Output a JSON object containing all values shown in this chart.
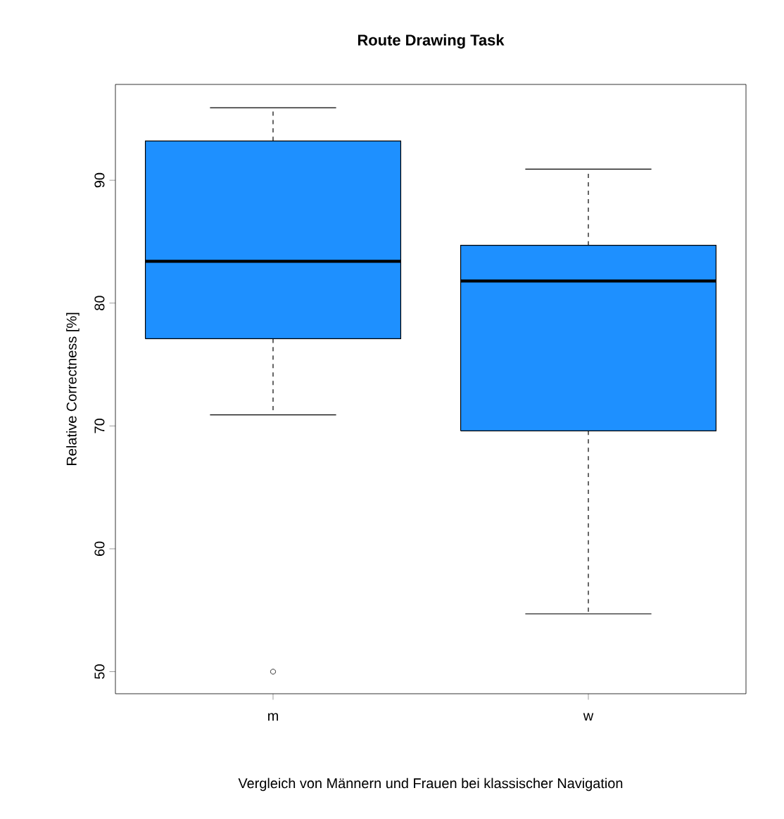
{
  "chart_data": {
    "type": "box",
    "title": "Route Drawing Task",
    "xlabel": "Vergleich von Männern und Frauen bei klassischer Navigation",
    "ylabel": "Relative Correctness [%]",
    "categories": [
      "m",
      "w"
    ],
    "boxes": [
      {
        "low": 70.9,
        "q1": 77.1,
        "median": 83.4,
        "q3": 93.2,
        "high": 95.9,
        "outliers": [
          50
        ]
      },
      {
        "low": 54.7,
        "q1": 69.6,
        "median": 81.8,
        "q3": 84.7,
        "high": 90.9
      }
    ],
    "color": "#1e90ff",
    "ylim": [
      48.2,
      97.8
    ],
    "yticks": [
      50,
      60,
      70,
      80,
      90
    ]
  }
}
